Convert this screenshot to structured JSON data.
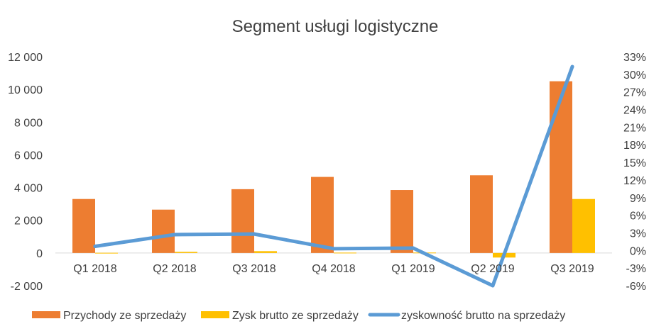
{
  "chart_data": {
    "type": "bar",
    "title": "Segment usługi logistyczne",
    "categories": [
      "Q1 2018",
      "Q2 2018",
      "Q3 2018",
      "Q4 2018",
      "Q1 2019",
      "Q2 2019",
      "Q3 2019"
    ],
    "series": [
      {
        "name": "Przychody ze sprzedaży",
        "type": "bar",
        "axis": "left",
        "color": "#ED7D31",
        "values": [
          3300,
          2650,
          3900,
          4650,
          3850,
          4750,
          10500
        ]
      },
      {
        "name": "Zysk brutto ze sprzedaży",
        "type": "bar",
        "axis": "left",
        "color": "#FFC000",
        "values": [
          10,
          70,
          110,
          20,
          25,
          -280,
          3300
        ]
      },
      {
        "name": "zyskowność brutto na sprzedaży",
        "type": "line",
        "axis": "right",
        "color": "#5B9BD5",
        "values": [
          0.7,
          2.7,
          2.8,
          0.3,
          0.4,
          -6.0,
          31.3
        ]
      }
    ],
    "y_left": {
      "min": -2000,
      "max": 12000,
      "ticks": [
        -2000,
        0,
        2000,
        4000,
        6000,
        8000,
        10000,
        12000
      ],
      "tick_labels": [
        "-2 000",
        "0",
        "2 000",
        "4 000",
        "6 000",
        "8 000",
        "10 000",
        "12 000"
      ]
    },
    "y_right": {
      "min": -6,
      "max": 33,
      "ticks": [
        -6,
        -3,
        0,
        3,
        6,
        9,
        12,
        15,
        18,
        21,
        24,
        27,
        30,
        33
      ],
      "tick_labels": [
        "-6%",
        "-3%",
        "0%",
        "3%",
        "6%",
        "9%",
        "12%",
        "15%",
        "18%",
        "21%",
        "24%",
        "27%",
        "30%",
        "33%"
      ]
    },
    "grid": false,
    "legend_position": "bottom"
  }
}
